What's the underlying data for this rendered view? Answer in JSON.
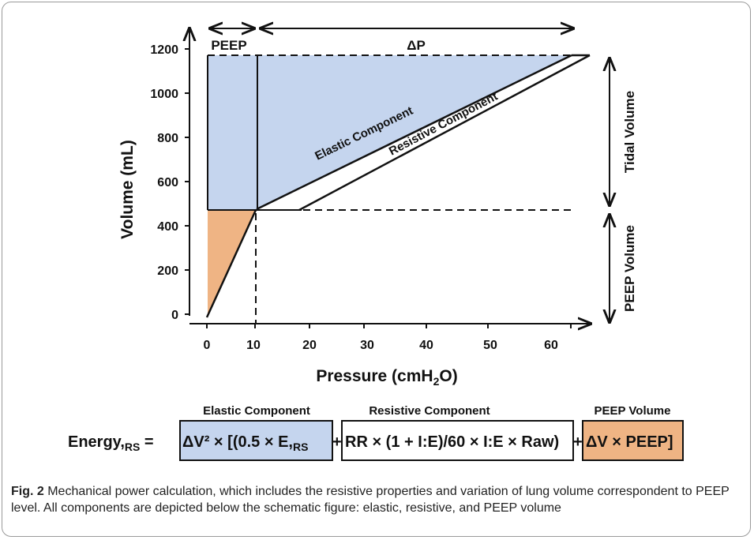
{
  "chart": {
    "y_axis_title": "Volume (mL)",
    "x_axis_title_main": "Pressure (cmH",
    "x_axis_title_sub": "2",
    "x_axis_title_end": "O)",
    "y_ticks": [
      "0",
      "200",
      "400",
      "600",
      "800",
      "1000",
      "1200"
    ],
    "x_ticks": [
      "0",
      "10",
      "20",
      "30",
      "40",
      "50",
      "60"
    ],
    "peep_label": "PEEP",
    "delta_p_label": "ΔP",
    "elastic_label": "Elastic Component",
    "resistive_label": "Resistive Component",
    "tidal_volume_label": "Tidal Volume",
    "peep_volume_label": "PEEP Volume"
  },
  "chart_data": {
    "type": "area",
    "xlim": [
      0,
      60
    ],
    "ylim": [
      0,
      1200
    ],
    "peep_pressure": 10,
    "peep_volume": 470,
    "end_inspiratory_volume": 1170,
    "elastic_line": [
      [
        10,
        470
      ],
      [
        60,
        1170
      ]
    ],
    "resistive_line": [
      [
        16,
        470
      ],
      [
        66,
        1170
      ]
    ]
  },
  "formula": {
    "lead": "Energy,",
    "lead_sub": "RS",
    "equals": " =",
    "elastic_header": "Elastic Component",
    "resistive_header": "Resistive Component",
    "peep_header": "PEEP Volume",
    "elastic_term": "ΔV² × [(0.5 × E,",
    "elastic_sub": "RS",
    "plus1": "+",
    "resistive_term": "RR × (1 + I:E)/60 × I:E × Raw)",
    "plus2": "+",
    "peep_term": "ΔV × PEEP]"
  },
  "caption": {
    "label": "Fig. 2",
    "text": " Mechanical power calculation, which includes the resistive properties and variation of lung volume correspondent to PEEP level. All components are depicted below the schematic figure: elastic, resistive, and PEEP volume"
  },
  "colors": {
    "blue_fill": "#c5d5ee",
    "orange_fill": "#efb484",
    "line": "#111111"
  }
}
